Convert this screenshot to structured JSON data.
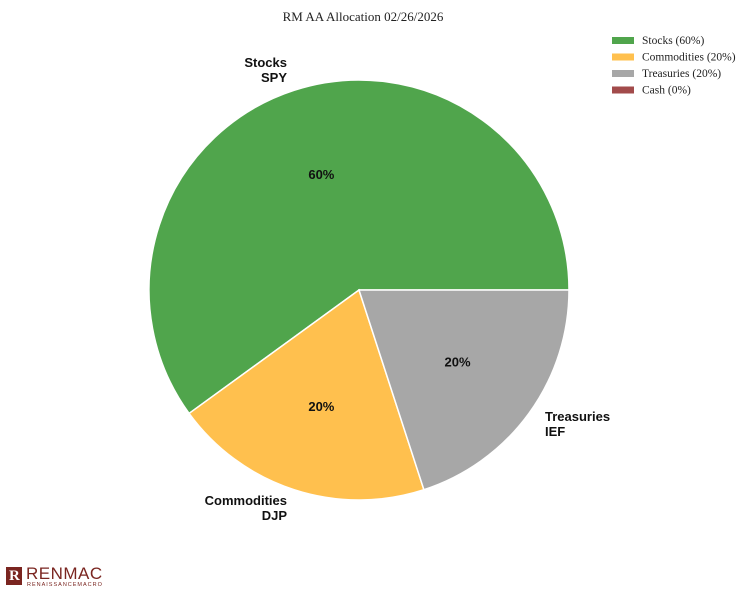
{
  "chart_data": {
    "type": "pie",
    "title": "RM AA Allocation 02/26/2026",
    "slices": [
      {
        "name": "Stocks",
        "ticker": "SPY",
        "value": 60,
        "pct_label": "60%",
        "legend": "Stocks (60%)",
        "color": "#50a54c"
      },
      {
        "name": "Commodities",
        "ticker": "DJP",
        "value": 20,
        "pct_label": "20%",
        "legend": "Commodities (20%)",
        "color": "#ffc04e"
      },
      {
        "name": "Treasuries",
        "ticker": "IEF",
        "value": 20,
        "pct_label": "20%",
        "legend": "Treasuries (20%)",
        "color": "#a7a7a7"
      },
      {
        "name": "Cash",
        "ticker": "",
        "value": 0,
        "pct_label": "",
        "legend": "Cash (0%)",
        "color": "#a24b4b"
      }
    ],
    "legend_position": "top-right"
  },
  "branding": {
    "logo_name": "RENMAC",
    "logo_sub": "RENAISSANCEMACRO"
  }
}
